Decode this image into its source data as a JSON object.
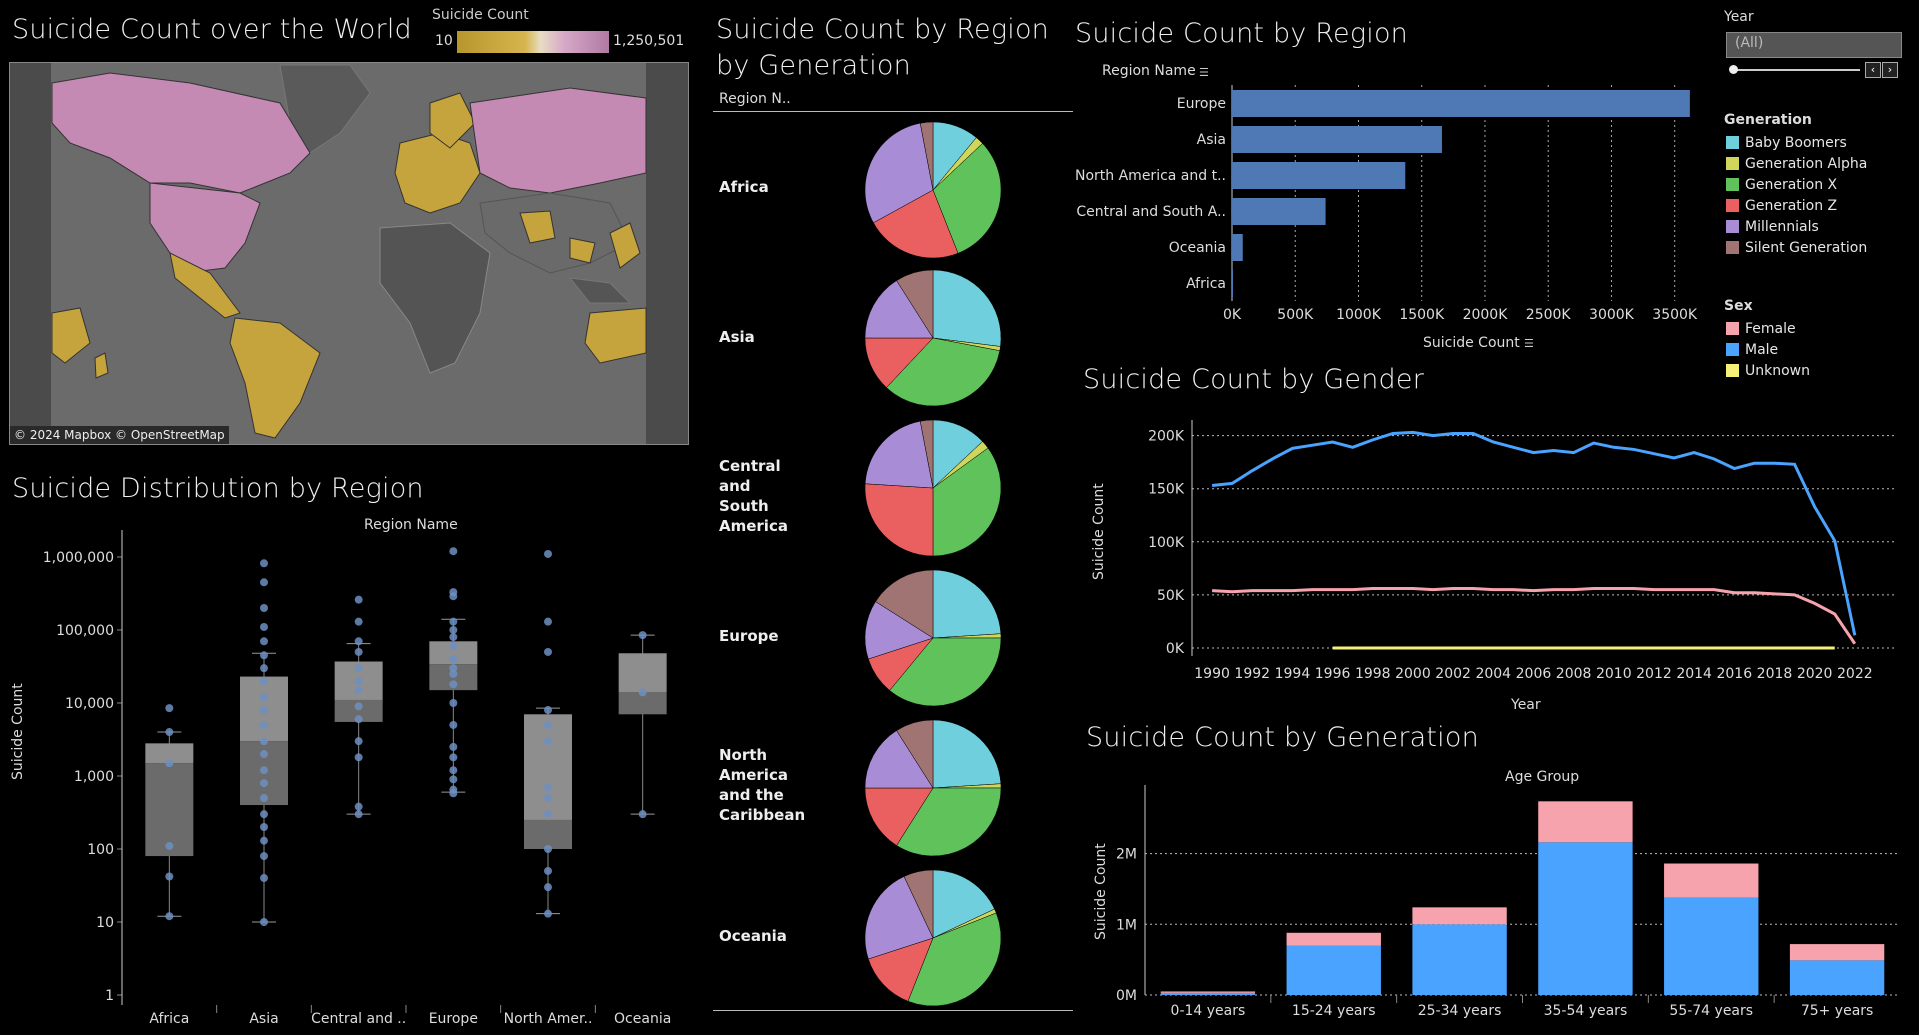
{
  "map": {
    "title": "Suicide Count over the World",
    "legend_title": "Suicide Count",
    "legend_min": "10",
    "legend_max": "1,250,501",
    "attribution": "© 2024 Mapbox © OpenStreetMap",
    "color_low": "#b8962e",
    "color_high": "#c98fb5",
    "land_color": "#b99a3a",
    "ocean_color": "#6b6b6b"
  },
  "boxplot": {
    "title": "Suicide Distribution by Region",
    "header": "Region Name",
    "ylabel": "Suicide Count",
    "y_ticks": [
      "1,000,000",
      "100,000",
      "10,000",
      "1,000",
      "100",
      "10",
      "1"
    ],
    "categories": [
      "Africa",
      "Asia",
      "Central and ..",
      "Europe",
      "North Amer..",
      "Oceania"
    ]
  },
  "pies": {
    "title": "Suicide Count  by Region by Generation",
    "column_header": "Region N..",
    "regions": [
      "Africa",
      "Asia",
      "Central and South America",
      "Europe",
      "North America and the Caribbean",
      "Oceania"
    ]
  },
  "bars_region": {
    "title": "Suicide Count by Region",
    "header": "Region Name",
    "xlabel": "Suicide Count",
    "x_ticks": [
      "0K",
      "500K",
      "1000K",
      "1500K",
      "2000K",
      "2500K",
      "3000K",
      "3500K"
    ]
  },
  "filters": {
    "year_label": "Year",
    "year_value": "(All)",
    "generation_label": "Generation",
    "generations": [
      "Baby Boomers",
      "Generation Alpha",
      "Generation X",
      "Generation Z",
      "Millennials",
      "Silent Generation"
    ],
    "generation_colors": [
      "#6fcfdc",
      "#cfd65b",
      "#5fc25b",
      "#ea5f5f",
      "#a98cd6",
      "#a07472"
    ],
    "sex_label": "Sex",
    "sexes": [
      "Female",
      "Male",
      "Unknown"
    ],
    "sex_colors": [
      "#f7a3ad",
      "#4aa3ff",
      "#f5f07a"
    ]
  },
  "line": {
    "title": "Suicide Count by Gender",
    "xlabel": "Year",
    "ylabel": "Suicide Count",
    "y_ticks": [
      "200K",
      "150K",
      "100K",
      "50K",
      "0K"
    ],
    "x_ticks": [
      "1990",
      "1992",
      "1994",
      "1996",
      "1998",
      "2000",
      "2002",
      "2004",
      "2006",
      "2008",
      "2010",
      "2012",
      "2014",
      "2016",
      "2018",
      "2020",
      "2022"
    ]
  },
  "stacked": {
    "title": "Suicide Count by Generation",
    "header": "Age Group",
    "ylabel": "Suicide Count",
    "y_ticks": [
      "2M",
      "1M",
      "0M"
    ]
  },
  "chart_data": [
    {
      "type": "bar",
      "title": "Suicide Count by Region",
      "xlabel": "Suicide Count",
      "categories": [
        "Europe",
        "Asia",
        "North America and t..",
        "Central and South A..",
        "Oceania",
        "Africa"
      ],
      "values": [
        3620000,
        1660000,
        1370000,
        740000,
        85000,
        8000
      ],
      "xlim": [
        0,
        3700000
      ],
      "orientation": "horizontal",
      "color": "#4e79b5"
    },
    {
      "type": "line",
      "title": "Suicide Count by Gender",
      "xlabel": "Year",
      "ylabel": "Suicide Count",
      "ylim": [
        0,
        210000
      ],
      "xlim": [
        1989,
        2024
      ],
      "series": [
        {
          "name": "Male",
          "color": "#4aa3ff",
          "x": [
            1990,
            1991,
            1992,
            1993,
            1994,
            1995,
            1996,
            1997,
            1998,
            1999,
            2000,
            2001,
            2002,
            2003,
            2004,
            2005,
            2006,
            2007,
            2008,
            2009,
            2010,
            2011,
            2012,
            2013,
            2014,
            2015,
            2016,
            2017,
            2018,
            2019,
            2020,
            2021,
            2022
          ],
          "y": [
            153000,
            155000,
            167000,
            178000,
            188000,
            191000,
            194000,
            189000,
            196000,
            202000,
            203000,
            200000,
            202000,
            202000,
            194000,
            189000,
            184000,
            186000,
            184000,
            193000,
            189000,
            187000,
            183000,
            179000,
            184000,
            178000,
            169000,
            174000,
            174000,
            173000,
            133000,
            101000,
            12000
          ]
        },
        {
          "name": "Female",
          "color": "#f7a3ad",
          "x": [
            1990,
            1991,
            1992,
            1993,
            1994,
            1995,
            1996,
            1997,
            1998,
            1999,
            2000,
            2001,
            2002,
            2003,
            2004,
            2005,
            2006,
            2007,
            2008,
            2009,
            2010,
            2011,
            2012,
            2013,
            2014,
            2015,
            2016,
            2017,
            2018,
            2019,
            2020,
            2021,
            2022
          ],
          "y": [
            54000,
            53000,
            54000,
            54000,
            54000,
            55000,
            55000,
            55000,
            56000,
            56000,
            56000,
            55000,
            56000,
            56000,
            55000,
            55000,
            54000,
            55000,
            55000,
            56000,
            56000,
            56000,
            55000,
            55000,
            55000,
            55000,
            52000,
            52000,
            51000,
            50000,
            42000,
            32000,
            4000
          ]
        },
        {
          "name": "Unknown",
          "color": "#f5f07a",
          "x": [
            1996,
            2021
          ],
          "y": [
            0,
            0
          ]
        }
      ]
    },
    {
      "type": "bar",
      "title": "Suicide Count by Generation",
      "ylabel": "Suicide Count",
      "categories": [
        "0-14 years",
        "15-24 years",
        "25-34 years",
        "35-54 years",
        "55-74 years",
        "75+ years"
      ],
      "stacked": true,
      "ylim": [
        0,
        2900000
      ],
      "series": [
        {
          "name": "Male",
          "color": "#4aa3ff",
          "values": [
            30000,
            700000,
            1000000,
            2160000,
            1380000,
            490000
          ]
        },
        {
          "name": "Female",
          "color": "#f7a3ad",
          "values": [
            20000,
            180000,
            240000,
            580000,
            480000,
            230000
          ]
        }
      ]
    },
    {
      "type": "pie",
      "title": "Suicide Count  by Region by Generation",
      "categories": [
        "Baby Boomers",
        "Generation Alpha",
        "Generation X",
        "Generation Z",
        "Millennials",
        "Silent Generation"
      ],
      "series": [
        {
          "name": "Africa",
          "values": [
            11,
            2,
            31,
            23,
            30,
            3
          ]
        },
        {
          "name": "Asia",
          "values": [
            27,
            1,
            34,
            13,
            16,
            9
          ]
        },
        {
          "name": "Central and South America",
          "values": [
            13,
            2,
            35,
            26,
            21,
            3
          ]
        },
        {
          "name": "Europe",
          "values": [
            24,
            1,
            36,
            9,
            14,
            16
          ]
        },
        {
          "name": "North America and the Caribbean",
          "values": [
            24,
            1,
            34,
            16,
            16,
            9
          ]
        },
        {
          "name": "Oceania",
          "values": [
            18,
            1,
            37,
            14,
            23,
            7
          ]
        }
      ]
    },
    {
      "type": "scatter",
      "title": "Suicide Distribution by Region",
      "ylabel": "Suicide Count",
      "y_scale": "log",
      "ylim": [
        1,
        2000000
      ],
      "categories": [
        "Africa",
        "Asia",
        "Central and ..",
        "Europe",
        "North Amer..",
        "Oceania"
      ],
      "box": [
        {
          "whisker_low": 12,
          "q1": 80,
          "median": 1500,
          "q3": 2800,
          "whisker_high": 4000
        },
        {
          "whisker_low": 10,
          "q1": 400,
          "median": 3000,
          "q3": 23000,
          "whisker_high": 48000
        },
        {
          "whisker_low": 300,
          "q1": 5500,
          "median": 11000,
          "q3": 37000,
          "whisker_high": 65000
        },
        {
          "whisker_low": 600,
          "q1": 15000,
          "median": 34000,
          "q3": 70000,
          "whisker_high": 140000
        },
        {
          "whisker_low": 13,
          "q1": 100,
          "median": 250,
          "q3": 7000,
          "whisker_high": 8500
        },
        {
          "whisker_low": 300,
          "q1": 7000,
          "median": 14000,
          "q3": 48000,
          "whisker_high": 85000
        }
      ],
      "points": [
        [
          8500,
          4000,
          1500,
          110,
          42,
          12
        ],
        [
          820000,
          450000,
          200000,
          110000,
          70000,
          45000,
          30000,
          20000,
          12000,
          8000,
          5000,
          3000,
          2000,
          1200,
          800,
          500,
          300,
          200,
          130,
          80,
          40,
          10
        ],
        [
          260000,
          130000,
          70000,
          50000,
          30000,
          20000,
          15000,
          9000,
          6000,
          3000,
          1800,
          380,
          300
        ],
        [
          1200000,
          330000,
          290000,
          130000,
          100000,
          80000,
          60000,
          40000,
          30000,
          25000,
          18000,
          10000,
          5000,
          2500,
          1800,
          1200,
          900,
          650,
          580
        ],
        [
          1100000,
          130000,
          50000,
          8000,
          5000,
          3000,
          700,
          500,
          300,
          100,
          50,
          30,
          13
        ],
        [
          85000,
          14000,
          300
        ]
      ]
    }
  ]
}
